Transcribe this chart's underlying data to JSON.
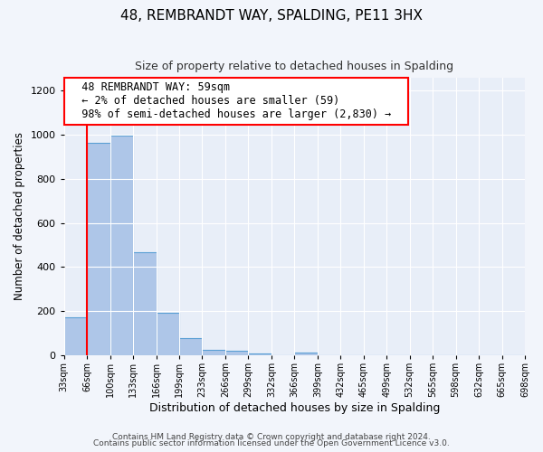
{
  "title": "48, REMBRANDT WAY, SPALDING, PE11 3HX",
  "subtitle": "Size of property relative to detached houses in Spalding",
  "xlabel": "Distribution of detached houses by size in Spalding",
  "ylabel": "Number of detached properties",
  "bin_labels": [
    "33sqm",
    "66sqm",
    "100sqm",
    "133sqm",
    "166sqm",
    "199sqm",
    "233sqm",
    "266sqm",
    "299sqm",
    "332sqm",
    "366sqm",
    "399sqm",
    "432sqm",
    "465sqm",
    "499sqm",
    "532sqm",
    "565sqm",
    "598sqm",
    "632sqm",
    "665sqm",
    "698sqm"
  ],
  "bar_values": [
    170,
    965,
    995,
    465,
    190,
    75,
    25,
    18,
    5,
    0,
    10,
    0,
    0,
    0,
    0,
    0,
    0,
    0,
    0,
    0
  ],
  "bar_color": "#aec6e8",
  "bar_edge_color": "#5a9fd4",
  "annotation_title": "48 REMBRANDT WAY: 59sqm",
  "annotation_line1": "← 2% of detached houses are smaller (59)",
  "annotation_line2": "98% of semi-detached houses are larger (2,830) →",
  "red_line_bin": 1,
  "ylim": [
    0,
    1260
  ],
  "yticks": [
    0,
    200,
    400,
    600,
    800,
    1000,
    1200
  ],
  "footer1": "Contains HM Land Registry data © Crown copyright and database right 2024.",
  "footer2": "Contains public sector information licensed under the Open Government Licence v3.0.",
  "background_color": "#f2f5fb",
  "plot_bg_color": "#e8eef8"
}
